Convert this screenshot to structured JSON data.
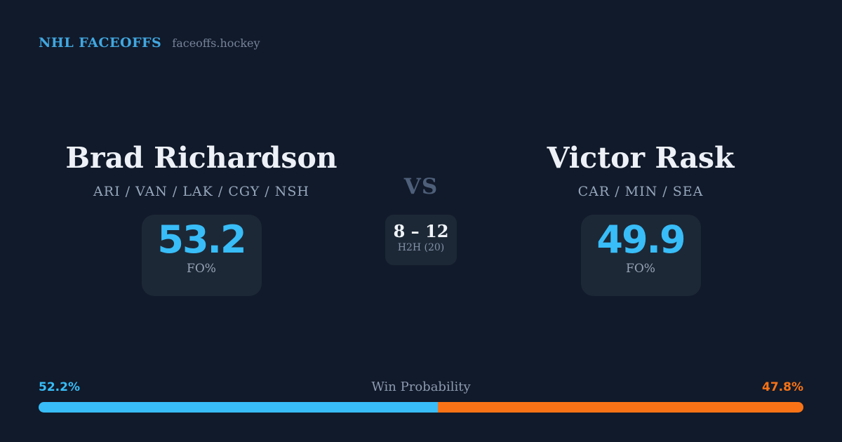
{
  "header": {
    "brand": "NHL FACEOFFS",
    "site": "faceoffs.hockey"
  },
  "players": {
    "left": {
      "name": "Brad Richardson",
      "teams": "ARI / VAN / LAK / CGY / NSH",
      "stat_value": "53.2",
      "stat_label": "FO%"
    },
    "right": {
      "name": "Victor Rask",
      "teams": "CAR / MIN / SEA",
      "stat_value": "49.9",
      "stat_label": "FO%"
    }
  },
  "versus": {
    "label": "VS",
    "h2h_score": "8 – 12",
    "h2h_label": "H2H (20)"
  },
  "win_probability": {
    "title": "Win Probability",
    "left_label": "52.2%",
    "right_label": "47.8%",
    "left_value": 52.2,
    "right_value": 47.8,
    "left_color": "#38bdf8",
    "right_color": "#f97316"
  },
  "colors": {
    "background": "#111a2a",
    "panel": "#1d2836",
    "accent_blue": "#38bdf8",
    "accent_orange": "#f97316",
    "header_blue": "#41a7e0",
    "text_primary": "#edf1f7",
    "text_muted": "#96a7bd",
    "vs_text": "#4e5f7a"
  },
  "chart_data": {
    "type": "bar",
    "title": "Win Probability",
    "categories": [
      "Brad Richardson",
      "Victor Rask"
    ],
    "values": [
      52.2,
      47.8
    ],
    "colors": [
      "#38bdf8",
      "#f97316"
    ],
    "legend_position": "none",
    "xlim": [
      0,
      100
    ]
  }
}
